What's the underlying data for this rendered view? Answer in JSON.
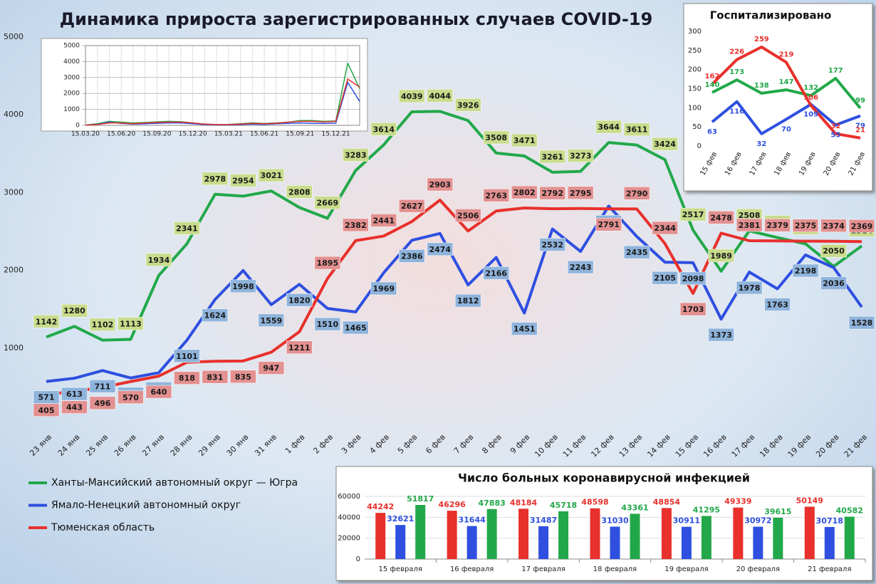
{
  "chart_data": [
    {
      "type": "line",
      "title": "Динамика прироста зарегистрированных случаев COVID-19",
      "categories": [
        "23 янв",
        "24 янв",
        "25 янв",
        "26 янв",
        "27 янв",
        "28 янв",
        "29 янв",
        "30 янв",
        "31 янв",
        "1 фев",
        "2 фев",
        "3 фев",
        "4 фев",
        "5 фев",
        "6 фев",
        "7 фев",
        "8 фев",
        "9 фев",
        "10 фев",
        "11 фев",
        "12 фев",
        "13 фев",
        "14 фев",
        "15 фев",
        "16 фев",
        "17 фев",
        "18 фев",
        "19 фев",
        "20 фев",
        "21 фев"
      ],
      "series": [
        {
          "name": "Ханты-Мансийский автономный округ — Югра",
          "color": "#22a84a",
          "values": [
            1142,
            1280,
            1102,
            1113,
            1934,
            2341,
            2978,
            2954,
            3021,
            2808,
            2669,
            3283,
            3614,
            4039,
            4044,
            3926,
            3508,
            3471,
            3261,
            3273,
            3644,
            3611,
            3424,
            2517,
            1989,
            2508,
            2422,
            2341,
            2050,
            2314
          ]
        },
        {
          "name": "Ямало-Ненецкий автономный округ",
          "color": "#2e4fe0",
          "values": [
            571,
            613,
            711,
            616,
            684,
            1101,
            1624,
            1998,
            1559,
            1820,
            1510,
            1465,
            1969,
            2386,
            2474,
            1812,
            2166,
            1451,
            2532,
            2243,
            2827,
            2435,
            2105,
            2098,
            1373,
            1978,
            1763,
            2198,
            2036,
            1528
          ]
        },
        {
          "name": "Тюменская область",
          "color": "#e8302c",
          "values": [
            405,
            443,
            496,
            570,
            640,
            818,
            831,
            835,
            947,
            1211,
            1895,
            2382,
            2441,
            2627,
            2903,
            2506,
            2763,
            2802,
            2792,
            2795,
            2791,
            2790,
            2344,
            1703,
            2478,
            2381,
            2379,
            2375,
            2374,
            2369
          ]
        }
      ],
      "ylim": [
        0,
        5000
      ],
      "yticks": [
        1000,
        2000,
        3000,
        4000,
        5000
      ],
      "grid": false,
      "legend": "lower left"
    },
    {
      "type": "line",
      "categories": [
        "15.03.20",
        null,
        null,
        "15.06.20",
        null,
        null,
        "15.09.20",
        null,
        null,
        "15.12.20",
        null,
        null,
        "15.03.21",
        null,
        null,
        "15.06.21",
        null,
        null,
        "15.09.21",
        null,
        null,
        "15.12.21",
        null,
        null
      ],
      "series": [
        {
          "color": "#22a84a",
          "values": [
            20,
            100,
            250,
            200,
            150,
            180,
            220,
            250,
            230,
            150,
            80,
            50,
            60,
            100,
            150,
            120,
            150,
            200,
            300,
            300,
            250,
            280,
            3900,
            2300
          ]
        },
        {
          "color": "#2e4fe0",
          "values": [
            10,
            60,
            200,
            120,
            80,
            100,
            130,
            150,
            150,
            100,
            50,
            30,
            30,
            50,
            80,
            60,
            100,
            120,
            150,
            130,
            120,
            140,
            2700,
            1500
          ]
        },
        {
          "color": "#e8302c",
          "values": [
            10,
            50,
            150,
            150,
            100,
            150,
            180,
            200,
            200,
            150,
            80,
            50,
            50,
            80,
            120,
            100,
            130,
            200,
            250,
            250,
            220,
            250,
            2900,
            2400
          ]
        }
      ],
      "ylim": [
        0,
        5000
      ],
      "yticks": [
        0,
        1000,
        2000,
        3000,
        4000,
        5000
      ],
      "grid": true
    },
    {
      "type": "line",
      "title": "Госпитализировано",
      "categories": [
        "15 фев",
        "16 фев",
        "17 фев",
        "18 фев",
        "19 фев",
        "20 фев",
        "21 фев"
      ],
      "series": [
        {
          "color": "#22a84a",
          "values": [
            140,
            173,
            138,
            147,
            132,
            177,
            99
          ]
        },
        {
          "color": "#2e4fe0",
          "values": [
            63,
            116,
            32,
            70,
            109,
            55,
            79
          ]
        },
        {
          "color": "#e8302c",
          "values": [
            162,
            226,
            259,
            219,
            106,
            32,
            21
          ]
        }
      ],
      "ylim": [
        0,
        300
      ],
      "yticks": [
        0,
        50,
        100,
        150,
        200,
        250,
        300
      ],
      "grid": false
    },
    {
      "type": "bar",
      "title": "Число больных коронавирусной инфекцией",
      "categories": [
        "15 февраля",
        "16 февраля",
        "17 февраля",
        "18 февраля",
        "19 февраля",
        "20 февраля",
        "21 февраля"
      ],
      "series": [
        {
          "color": "#e8302c",
          "values": [
            44242,
            46296,
            48184,
            48598,
            48854,
            49339,
            50149
          ]
        },
        {
          "color": "#2e4fe0",
          "values": [
            32621,
            31644,
            31487,
            31030,
            30911,
            30972,
            30718
          ]
        },
        {
          "color": "#22a84a",
          "values": [
            51817,
            47883,
            45718,
            43361,
            41295,
            39615,
            40582
          ]
        }
      ],
      "ylim": [
        0,
        60000
      ],
      "yticks": [
        0,
        20000,
        40000,
        60000
      ],
      "grid": true
    }
  ]
}
